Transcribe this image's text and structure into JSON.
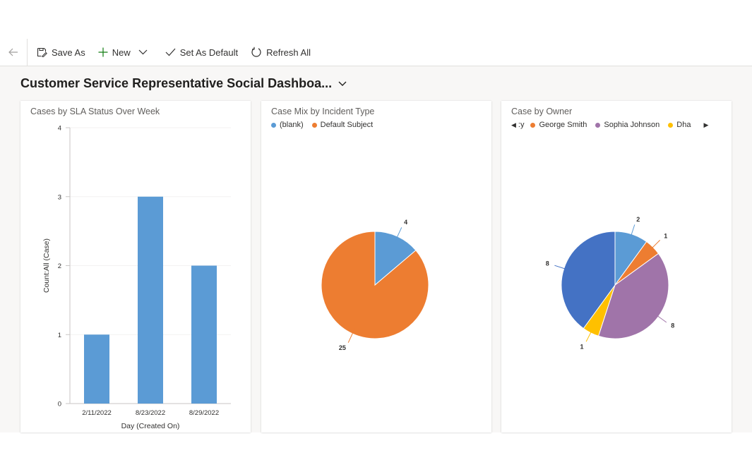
{
  "toolbar": {
    "save_as": "Save As",
    "new": "New",
    "set_as_default": "Set As Default",
    "refresh_all": "Refresh All"
  },
  "dashboard": {
    "title": "Customer Service Representative Social Dashboa..."
  },
  "cards": {
    "sla": {
      "title": "Cases by SLA Status Over Week"
    },
    "incident": {
      "title": "Case Mix by Incident Type"
    },
    "owner": {
      "title": "Case by Owner"
    }
  },
  "colors": {
    "blue": "#5b9bd5",
    "orange": "#ed7d31",
    "purple": "#a074a9",
    "yellow": "#ffc000",
    "darkblue": "#4472c4"
  },
  "chart_data": [
    {
      "type": "bar",
      "title": "Cases by SLA Status Over Week",
      "categories": [
        "2/11/2022",
        "8/23/2022",
        "8/29/2022"
      ],
      "values": [
        1,
        3,
        2
      ],
      "xlabel": "Day (Created On)",
      "ylabel": "Count:All (Case)",
      "ylim": [
        0,
        4
      ],
      "yticks": [
        "0",
        "1",
        "2",
        "3",
        "4"
      ]
    },
    {
      "type": "pie",
      "title": "Case Mix by Incident Type",
      "legend": [
        "(blank)",
        "Default Subject"
      ],
      "slices": [
        {
          "name": "(blank)",
          "value": 4,
          "label": "4",
          "color": "#5b9bd5"
        },
        {
          "name": "Default Subject",
          "value": 25,
          "label": "25",
          "color": "#ed7d31"
        }
      ]
    },
    {
      "type": "pie",
      "title": "Case by Owner",
      "legend": [
        ":y",
        "George Smith",
        "Sophia Johnson",
        "Dha"
      ],
      "slices": [
        {
          "name": "",
          "value": 2,
          "label": "2",
          "color": "#5b9bd5"
        },
        {
          "name": "George Smith",
          "value": 1,
          "label": "1",
          "color": "#ed7d31"
        },
        {
          "name": "Sophia Johnson",
          "value": 8,
          "label": "8",
          "color": "#a074a9"
        },
        {
          "name": "Dha",
          "value": 1,
          "label": "1",
          "color": "#ffc000"
        },
        {
          "name": "",
          "value": 8,
          "label": "8",
          "color": "#4472c4"
        }
      ]
    }
  ]
}
